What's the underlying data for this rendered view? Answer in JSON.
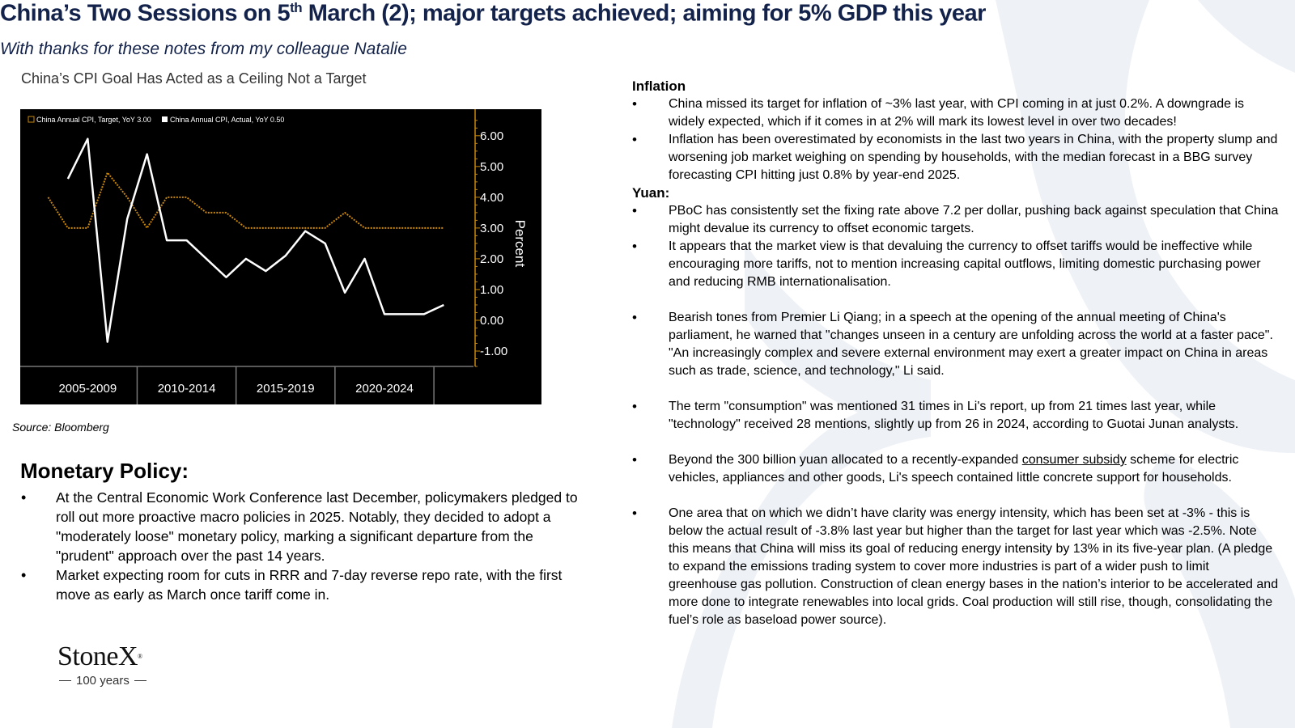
{
  "title": {
    "pre": "China’s Two Sessions on 5",
    "sup": "th",
    "post": " March (2); major targets achieved; aiming for 5% GDP this year"
  },
  "subtitle": "With thanks for these notes from my colleague Natalie",
  "source": "Source: Bloomberg",
  "chart_data": {
    "type": "line",
    "title": "China’s CPI Goal Has Acted as a Ceiling Not a Target",
    "ylabel": "Percent",
    "y_axis_side": "right",
    "ylim": [
      -1.5,
      6.6
    ],
    "yticks": [
      "6.00",
      "5.00",
      "4.00",
      "3.00",
      "2.00",
      "1.00",
      "0.00",
      "-1.00"
    ],
    "ytick_values": [
      6,
      5,
      4,
      3,
      2,
      1,
      0,
      -1
    ],
    "xlim": [
      2004,
      2026.5
    ],
    "xtick_labels": [
      "2005-2009",
      "2010-2014",
      "2015-2019",
      "2020-2024"
    ],
    "xtick_centers": [
      2007,
      2012,
      2017,
      2022
    ],
    "x_dividers": [
      2009.5,
      2014.5,
      2019.5,
      2024.5
    ],
    "legend_position": "top-left",
    "background": "#000000",
    "series": [
      {
        "name": "China Annual CPI, Target, YoY 3.00",
        "color": "#c8860b",
        "style": "dotted",
        "x": [
          2005,
          2006,
          2007,
          2008,
          2009,
          2010,
          2011,
          2012,
          2013,
          2014,
          2015,
          2016,
          2017,
          2018,
          2019,
          2020,
          2021,
          2022,
          2023,
          2024,
          2025
        ],
        "y": [
          4,
          3,
          3,
          4.8,
          4,
          3,
          4,
          4,
          3.5,
          3.5,
          3,
          3,
          3,
          3,
          3,
          3.5,
          3,
          3,
          3,
          3,
          3
        ]
      },
      {
        "name": "China Annual CPI, Actual, YoY 0.50",
        "color": "#ffffff",
        "style": "solid",
        "x": [
          2006,
          2007,
          2008,
          2009,
          2010,
          2011,
          2012,
          2013,
          2014,
          2015,
          2016,
          2017,
          2018,
          2019,
          2020,
          2021,
          2022,
          2023,
          2024,
          2025
        ],
        "y": [
          4.6,
          5.9,
          -0.7,
          3.3,
          5.4,
          2.6,
          2.6,
          2,
          1.4,
          2,
          1.6,
          2.1,
          2.9,
          2.5,
          0.9,
          2,
          0.2,
          0.2,
          0.2,
          0.5
        ]
      }
    ]
  },
  "monetary": {
    "heading": "Monetary Policy:",
    "items": [
      "At the Central Economic Work Conference last December, policymakers pledged to roll out more proactive macro policies in 2025. Notably, they decided to adopt a \"moderately loose\" monetary policy, marking a significant departure from the \"prudent\" approach over the past 14 years.",
      "Market expecting room for cuts in RRR and 7-day reverse repo rate, with the first move as early as March once tariff come in."
    ]
  },
  "inflation": {
    "heading": "Inflation",
    "items": [
      "China missed its target for inflation of ~3% last year, with CPI coming in at just 0.2%. A downgrade is widely expected, which if it comes in at 2% will mark its lowest level in over two decades!",
      "Inflation has been overestimated by economists in the last two years in China, with the property slump and worsening job market weighing on spending by households, with the median forecast in a BBG survey forecasting CPI hitting just 0.8% by year-end 2025."
    ]
  },
  "yuan": {
    "heading": "Yuan:",
    "items": [
      "PBoC has consistently set the fixing rate above 7.2 per dollar, pushing back against speculation that China might devalue its currency to offset economic targets.",
      "It appears that the market view is that devaluing the currency to offset tariffs would be ineffective while encouraging more tariffs, not to mention increasing capital outflows, limiting domestic purchasing power and reducing RMB internationalisation."
    ]
  },
  "notes": {
    "bearish": "Bearish tones from Premier Li Qiang; in a speech at the opening of the annual meeting of China's parliament, he warned that \"changes unseen in a century are unfolding across the world at a faster pace\". \"An increasingly complex and severe external environment may exert a greater impact on China in areas such as trade, science, and technology,\" Li said.",
    "consumption": "The term \"consumption\" was mentioned 31 times in Li's report, up from 21 times last year, while \"technology\" received 28 mentions, slightly up from 26 in 2024, according to Guotai Junan analysts.",
    "subsidy_pre": "Beyond the 300 billion yuan allocated to a recently-expanded ",
    "subsidy_link": "consumer subsidy",
    "subsidy_post": " scheme for electric vehicles, appliances and other goods, Li's speech contained little concrete support for households.",
    "energy": "One area that on which we didn’t have clarity was energy intensity, which has been set at -3% - this is below the actual result of -3.8% last year but higher than the target for last year which was -2.5%. Note this means that China will miss its goal of reducing energy intensity by 13% in its five-year plan. (A pledge to expand the emissions trading system to cover more industries is part of a wider push to limit greenhouse gas pollution. Construction of clean energy bases in the nation’s interior to be accelerated and more done to integrate renewables into local grids. Coal production will still rise, though, consolidating the fuel’s role as baseload power source)."
  },
  "logo": {
    "name": "StoneX",
    "mark": "®",
    "tagline": "100 years"
  }
}
